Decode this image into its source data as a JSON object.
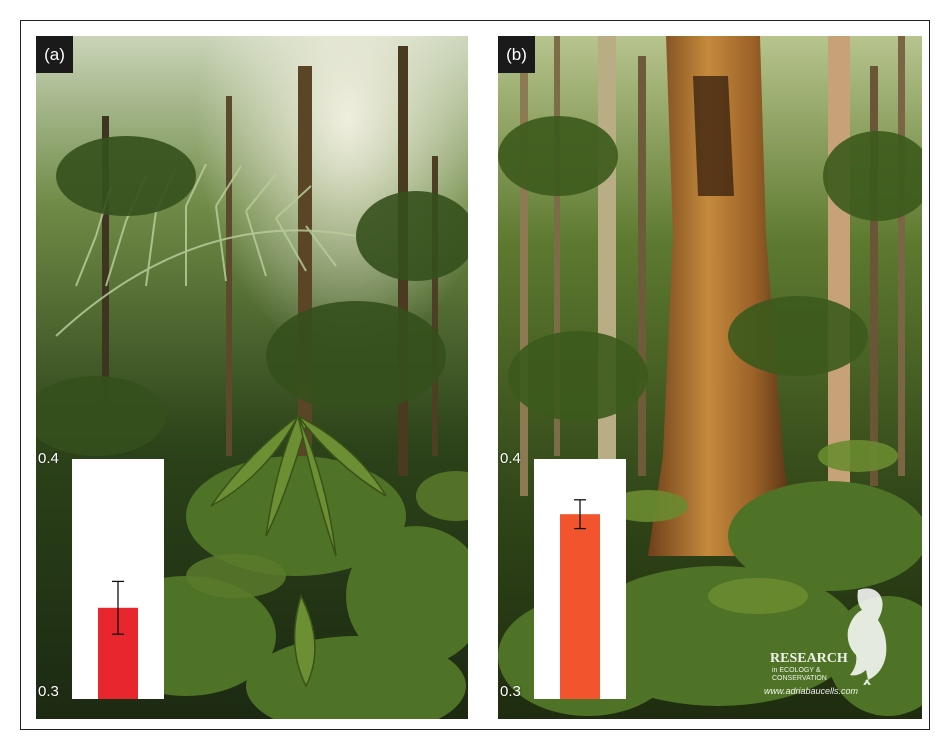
{
  "panels": [
    {
      "label": "(a)",
      "ytick_top": "0.4",
      "ytick_bottom": "0.3",
      "bar_color": "#e8262e",
      "bar_value": 0.338,
      "error_low": 0.327,
      "error_high": 0.349
    },
    {
      "label": "(b)",
      "ytick_top": "0.4",
      "ytick_bottom": "0.3",
      "bar_color": "#f2542d",
      "bar_value": 0.377,
      "error_low": 0.371,
      "error_high": 0.383
    }
  ],
  "inset_axis": {
    "ymin": 0.3,
    "ymax": 0.4
  },
  "watermark": {
    "research": "RESEARCH",
    "sub_line1": "in ECOLOGY &",
    "sub_line2": "CONSERVATION",
    "url": "www.adriabaucells.com"
  },
  "colors": {
    "foliage_dark": "#1f2e16",
    "foliage_mid": "#3f5a24",
    "foliage_light": "#7a9a3c",
    "canopy_light": "#dfe6d0",
    "trunk_orange": "#b9742e"
  }
}
